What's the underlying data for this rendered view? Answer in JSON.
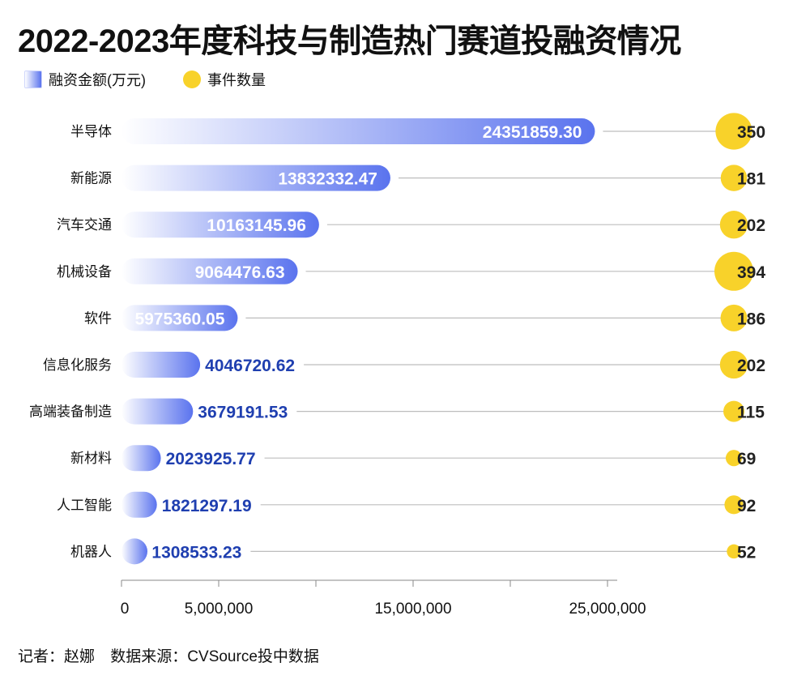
{
  "title": "2022-2023年度科技与制造热门赛道投融资情况",
  "legend": {
    "bar_label": "融资金额(万元)",
    "dot_label": "事件数量"
  },
  "footer": {
    "reporter": "记者：赵娜",
    "source": "数据来源：CVSource投中数据"
  },
  "colors": {
    "bar_start": "#ffffff",
    "bar_end": "#5a73ee",
    "bubble": "#f8d22a",
    "label_outside": "#1f3fb0",
    "label_inside": "#ffffff",
    "count_text": "#222222",
    "leader_line": "#bdbdbd"
  },
  "chart_data": {
    "type": "bar",
    "orientation": "horizontal",
    "categories": [
      "半导体",
      "新能源",
      "汽车交通",
      "机械设备",
      "软件",
      "信息化服务",
      "高端装备制造",
      "新材料",
      "人工智能",
      "机器人"
    ],
    "series": [
      {
        "name": "融资金额(万元)",
        "values": [
          24351859.3,
          13832332.47,
          10163145.96,
          9064476.63,
          5975360.05,
          4046720.62,
          3679191.53,
          2023925.77,
          1821297.19,
          1308533.23
        ],
        "labels": [
          "24351859.30",
          "13832332.47",
          "10163145.96",
          "9064476.63",
          "5975360.05",
          "4046720.62",
          "3679191.53",
          "2023925.77",
          "1821297.19",
          "1308533.23"
        ]
      },
      {
        "name": "事件数量",
        "values": [
          350,
          181,
          202,
          394,
          186,
          202,
          115,
          69,
          92,
          52
        ]
      }
    ],
    "xlim": [
      0,
      25000000
    ],
    "x_ticks_labeled": [
      "0",
      "5,000,000",
      "15,000,000",
      "25,000,000"
    ],
    "x_tick_values": [
      0,
      5000000,
      10000000,
      15000000,
      20000000,
      25000000
    ],
    "legend_position": "top-left",
    "grid": false
  }
}
